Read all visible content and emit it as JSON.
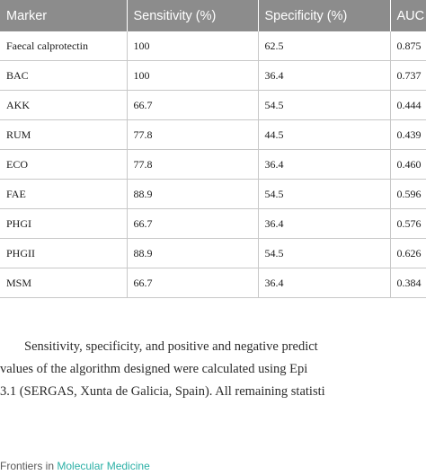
{
  "table": {
    "headers": [
      "Marker",
      "Sensitivity (%)",
      "Specificity (%)",
      "AUC"
    ],
    "rows": [
      [
        "Faecal calprotectin",
        "100",
        "62.5",
        "0.875"
      ],
      [
        "BAC",
        "100",
        "36.4",
        "0.737"
      ],
      [
        "AKK",
        "66.7",
        "54.5",
        "0.444"
      ],
      [
        "RUM",
        "77.8",
        "44.5",
        "0.439"
      ],
      [
        "ECO",
        "77.8",
        "36.4",
        "0.460"
      ],
      [
        "FAE",
        "88.9",
        "54.5",
        "0.596"
      ],
      [
        "PHGI",
        "66.7",
        "36.4",
        "0.576"
      ],
      [
        "PHGII",
        "88.9",
        "54.5",
        "0.626"
      ],
      [
        "MSM",
        "66.7",
        "36.4",
        "0.384"
      ]
    ]
  },
  "paragraph": {
    "line1": "Sensitivity, specificity, and positive and negative predict",
    "line2": "values of the algorithm designed were calculated using Epi",
    "line3": "3.1 (SERGAS, Xunta de Galicia, Spain). All remaining statisti"
  },
  "footer": {
    "prefix": "Frontiers in ",
    "journal": "Molecular Medicine"
  },
  "colors": {
    "header_bg": "#8c8c8c",
    "journal_accent": "#2bb0a6"
  }
}
